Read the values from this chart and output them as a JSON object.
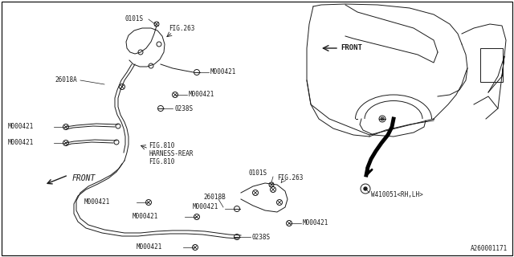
{
  "bg_color": "#ffffff",
  "line_color": "#1a1a1a",
  "thick_line_color": "#000000",
  "diagram_id": "A260001171",
  "font_size": 5.5,
  "labels": {
    "0101S_top": "0101S",
    "FIG263_top": "FIG.263",
    "M000421_upper_right": "M000421",
    "26018A": "26018A",
    "M000421_mid_right": "M000421",
    "0238S_upper": "0238S",
    "M000421_left_upper": "M000421",
    "M000421_left_lower": "M000421",
    "FIG810": "FIG.810",
    "HARNESS_REAR": "HARNESS-REAR",
    "FIG810b": "FIG.810",
    "FRONT_lower": "FRONT",
    "M000421_lower_mid1": "M000421",
    "M000421_lower_mid2": "M000421",
    "26018B": "26018B",
    "M000421_lower_right1": "M000421",
    "M000421_lower_right2": "M000421",
    "0238S_lower": "0238S",
    "0101S_lower": "0101S",
    "FIG263_lower": "FIG.263",
    "M000421_lower_left": "M000421",
    "FRONT_right": "FRONT",
    "W410051": "W410051<RH,LH>"
  }
}
